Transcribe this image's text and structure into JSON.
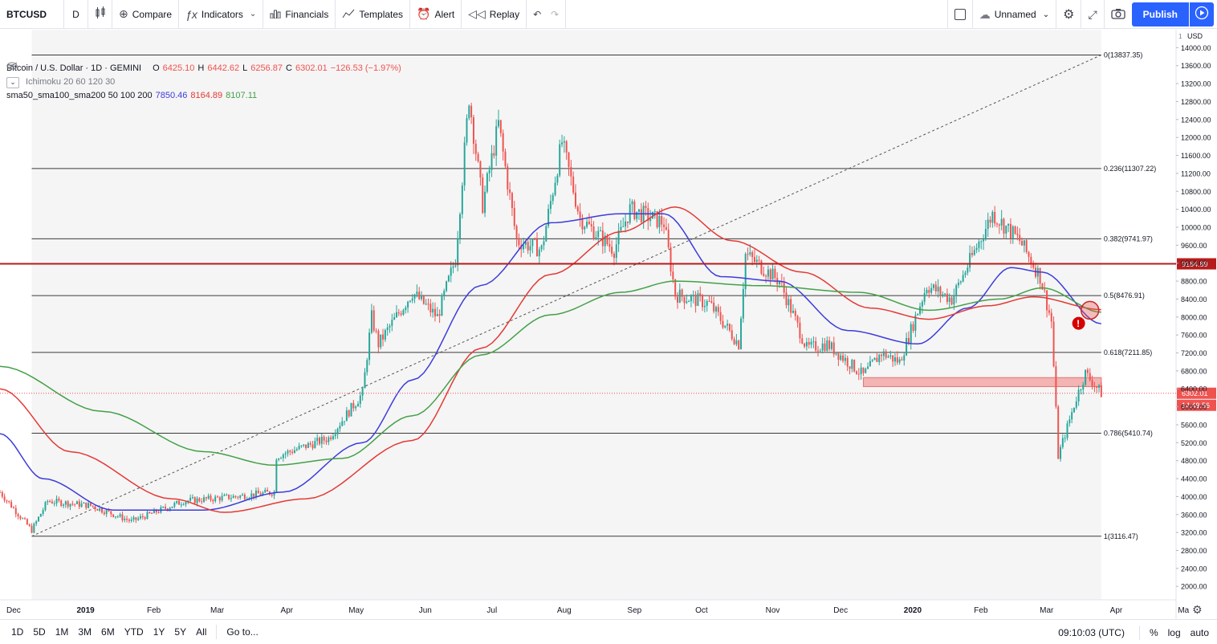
{
  "toolbar": {
    "symbol": "BTCUSD",
    "interval": "D",
    "compare": "Compare",
    "indicators": "Indicators",
    "financials": "Financials",
    "templates": "Templates",
    "alert": "Alert",
    "replay": "Replay",
    "layout_name": "Unnamed",
    "publish": "Publish"
  },
  "legend": {
    "title": "Bitcoin / U.S. Dollar · 1D · GEMINI",
    "open_k": "O",
    "open": "6425.10",
    "high_k": "H",
    "high": "6442.62",
    "low_k": "L",
    "low": "6256.87",
    "close_k": "C",
    "close": "6302.01",
    "change": "−126.53 (−1.97%)",
    "ichimoku": "Ichimoku 20 60 120 30",
    "sma_label": "sma50_sma100_sma200 50 100 200",
    "sma50_val": "7850.46",
    "sma100_val": "8164.89",
    "sma200_val": "8107.11"
  },
  "price_axis": {
    "currency": "USD",
    "ticks": [
      "14000.00",
      "13600.00",
      "13200.00",
      "12800.00",
      "12400.00",
      "12000.00",
      "11600.00",
      "11200.00",
      "10800.00",
      "10400.00",
      "10000.00",
      "9600.00",
      "9200.00",
      "8800.00",
      "8400.00",
      "8000.00",
      "7600.00",
      "7200.00",
      "6800.00",
      "6400.00",
      "6000.00",
      "5600.00",
      "5200.00",
      "4800.00",
      "4400.00",
      "4000.00",
      "3600.00",
      "3200.00",
      "2800.00",
      "2400.00",
      "2000.00"
    ],
    "tick_prefix": "1",
    "hline_label": "9184.89",
    "last_price": "6302.01",
    "countdown": "14:49:56"
  },
  "time_axis": {
    "labels": [
      "Dec",
      "2019",
      "Feb",
      "Mar",
      "Apr",
      "May",
      "Jun",
      "Jul",
      "Aug",
      "Sep",
      "Oct",
      "Nov",
      "Dec",
      "2020",
      "Feb",
      "Mar",
      "Apr",
      "Ma"
    ]
  },
  "fib_levels": [
    {
      "label": "0(13837.35)",
      "price": 13837.35
    },
    {
      "label": "0.236(11307.22)",
      "price": 11307.22
    },
    {
      "label": "0.382(9741.97)",
      "price": 9741.97
    },
    {
      "label": "0.5(8476.91)",
      "price": 8476.91
    },
    {
      "label": "0.618(7211.85)",
      "price": 7211.85
    },
    {
      "label": "0.786(5410.74)",
      "price": 5410.74
    },
    {
      "label": "1(3116.47)",
      "price": 3116.47
    }
  ],
  "colors": {
    "up": "#26a69a",
    "down": "#ef5350",
    "sma50": "#3c3cdc",
    "sma100": "#e53935",
    "sma200": "#43a047",
    "hline": "#b71c1c",
    "accent": "#2962ff"
  },
  "chart_data": {
    "type": "candlestick",
    "symbol": "BTCUSD",
    "timeframe": "1D",
    "exchange": "GEMINI",
    "ylim": [
      1700,
      14400
    ],
    "x_range": [
      "2018-12-01",
      "2020-05-03"
    ],
    "horizontal_line": 9184.89,
    "last_price": 6302.01,
    "zone": {
      "from": "2019-12-17",
      "to": "2020-03-31",
      "low": 6450,
      "high": 6650
    },
    "trend_line": {
      "from": [
        "2018-12-15",
        3116.47
      ],
      "to": [
        "2020-03-31",
        13837.35
      ]
    },
    "close_path": [
      [
        "2018-12-01",
        4100
      ],
      [
        "2018-12-15",
        3250
      ],
      [
        "2018-12-22",
        3900
      ],
      [
        "2019-01-10",
        3800
      ],
      [
        "2019-01-28",
        3450
      ],
      [
        "2019-02-20",
        3900
      ],
      [
        "2019-03-15",
        4000
      ],
      [
        "2019-04-01",
        4100
      ],
      [
        "2019-04-02",
        4900
      ],
      [
        "2019-04-25",
        5300
      ],
      [
        "2019-05-10",
        6300
      ],
      [
        "2019-05-14",
        8000
      ],
      [
        "2019-05-17",
        7400
      ],
      [
        "2019-06-01",
        8550
      ],
      [
        "2019-06-12",
        8000
      ],
      [
        "2019-06-20",
        9300
      ],
      [
        "2019-06-26",
        12900
      ],
      [
        "2019-07-02",
        10500
      ],
      [
        "2019-07-09",
        12300
      ],
      [
        "2019-07-17",
        9700
      ],
      [
        "2019-07-28",
        9500
      ],
      [
        "2019-08-06",
        11900
      ],
      [
        "2019-08-14",
        10200
      ],
      [
        "2019-08-29",
        9500
      ],
      [
        "2019-09-05",
        10400
      ],
      [
        "2019-09-20",
        10100
      ],
      [
        "2019-09-25",
        8500
      ],
      [
        "2019-10-10",
        8300
      ],
      [
        "2019-10-23",
        7400
      ],
      [
        "2019-10-26",
        9400
      ],
      [
        "2019-11-10",
        8800
      ],
      [
        "2019-11-22",
        7300
      ],
      [
        "2019-12-01",
        7400
      ],
      [
        "2019-12-17",
        6700
      ],
      [
        "2019-12-25",
        7200
      ],
      [
        "2020-01-02",
        7000
      ],
      [
        "2020-01-14",
        8700
      ],
      [
        "2020-01-25",
        8400
      ],
      [
        "2020-02-12",
        10300
      ],
      [
        "2020-02-24",
        9700
      ],
      [
        "2020-03-04",
        8900
      ],
      [
        "2020-03-09",
        7900
      ],
      [
        "2020-03-12",
        4900
      ],
      [
        "2020-03-20",
        6200
      ],
      [
        "2020-03-24",
        6750
      ],
      [
        "2020-03-31",
        6302
      ]
    ],
    "series": [
      {
        "name": "sma50",
        "values": [
          [
            "2018-12-01",
            5400
          ],
          [
            "2018-12-20",
            4400
          ],
          [
            "2019-01-20",
            3700
          ],
          [
            "2019-03-01",
            3700
          ],
          [
            "2019-04-05",
            4100
          ],
          [
            "2019-05-10",
            5200
          ],
          [
            "2019-06-01",
            6600
          ],
          [
            "2019-07-01",
            8700
          ],
          [
            "2019-08-01",
            10100
          ],
          [
            "2019-09-01",
            10300
          ],
          [
            "2019-09-20",
            10300
          ],
          [
            "2019-10-15",
            8900
          ],
          [
            "2019-11-10",
            8800
          ],
          [
            "2019-12-10",
            7700
          ],
          [
            "2020-01-10",
            7400
          ],
          [
            "2020-02-01",
            8200
          ],
          [
            "2020-02-20",
            9100
          ],
          [
            "2020-03-05",
            9000
          ],
          [
            "2020-03-31",
            7850
          ]
        ]
      },
      {
        "name": "sma100",
        "values": [
          [
            "2018-12-01",
            6400
          ],
          [
            "2019-01-01",
            5000
          ],
          [
            "2019-02-15",
            3950
          ],
          [
            "2019-03-10",
            3650
          ],
          [
            "2019-04-15",
            3950
          ],
          [
            "2019-06-01",
            5250
          ],
          [
            "2019-07-01",
            7300
          ],
          [
            "2019-08-01",
            8950
          ],
          [
            "2019-09-01",
            9900
          ],
          [
            "2019-09-25",
            10450
          ],
          [
            "2019-10-20",
            9700
          ],
          [
            "2019-11-20",
            9000
          ],
          [
            "2019-12-20",
            8200
          ],
          [
            "2020-01-15",
            7950
          ],
          [
            "2020-02-10",
            8250
          ],
          [
            "2020-03-01",
            8450
          ],
          [
            "2020-03-31",
            8165
          ]
        ]
      },
      {
        "name": "sma200",
        "values": [
          [
            "2018-12-01",
            6900
          ],
          [
            "2019-01-15",
            5900
          ],
          [
            "2019-03-01",
            5000
          ],
          [
            "2019-04-01",
            4700
          ],
          [
            "2019-05-01",
            4850
          ],
          [
            "2019-06-01",
            5800
          ],
          [
            "2019-07-01",
            7150
          ],
          [
            "2019-08-01",
            8050
          ],
          [
            "2019-09-01",
            8550
          ],
          [
            "2019-09-25",
            8800
          ],
          [
            "2019-11-01",
            8700
          ],
          [
            "2019-12-15",
            8550
          ],
          [
            "2020-01-15",
            8150
          ],
          [
            "2020-02-15",
            8400
          ],
          [
            "2020-03-05",
            8650
          ],
          [
            "2020-03-31",
            8107
          ]
        ]
      }
    ]
  },
  "bottombar": {
    "ranges": [
      "1D",
      "5D",
      "1M",
      "3M",
      "6M",
      "YTD",
      "1Y",
      "5Y",
      "All"
    ],
    "goto": "Go to...",
    "clock": "09:10:03 (UTC)",
    "percent": "%",
    "log": "log",
    "auto": "auto"
  }
}
